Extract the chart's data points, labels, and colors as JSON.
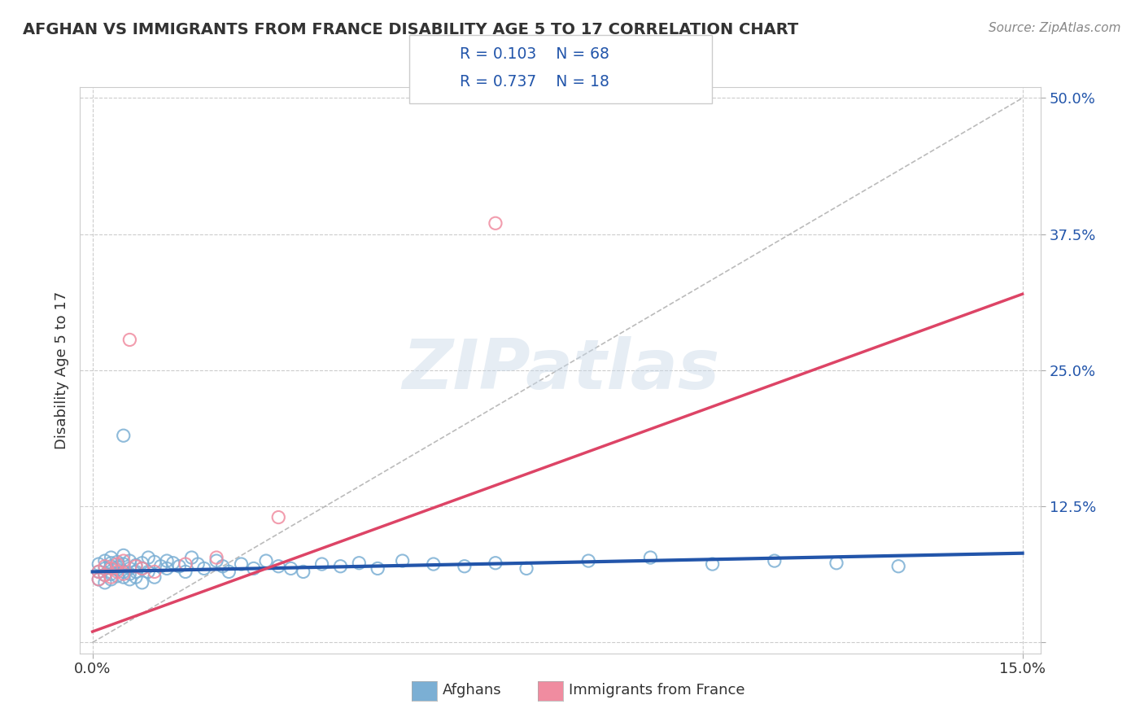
{
  "title": "AFGHAN VS IMMIGRANTS FROM FRANCE DISABILITY AGE 5 TO 17 CORRELATION CHART",
  "source": "Source: ZipAtlas.com",
  "ylabel": "Disability Age 5 to 17",
  "legend_r1": "R = 0.103",
  "legend_n1": "N = 68",
  "legend_r2": "R = 0.737",
  "legend_n2": "N = 18",
  "afghans_color": "#7bafd4",
  "france_color": "#f08ca0",
  "line_afghans_color": "#2255aa",
  "line_france_color": "#dd4466",
  "watermark": "ZIPatlas",
  "legend_text_color": "#2255aa",
  "background_color": "#ffffff",
  "xlim": [
    0.0,
    0.15
  ],
  "ylim": [
    0.0,
    0.5
  ],
  "y_ticks": [
    0.0,
    0.125,
    0.25,
    0.375,
    0.5
  ],
  "y_tick_labels": [
    "",
    "12.5%",
    "25.0%",
    "37.5%",
    "50.0%"
  ],
  "afghans_x": [
    0.001,
    0.001,
    0.001,
    0.002,
    0.002,
    0.002,
    0.002,
    0.003,
    0.003,
    0.003,
    0.003,
    0.003,
    0.004,
    0.004,
    0.004,
    0.004,
    0.005,
    0.005,
    0.005,
    0.005,
    0.005,
    0.006,
    0.006,
    0.006,
    0.006,
    0.007,
    0.007,
    0.007,
    0.008,
    0.008,
    0.008,
    0.009,
    0.009,
    0.01,
    0.01,
    0.011,
    0.012,
    0.012,
    0.013,
    0.014,
    0.015,
    0.016,
    0.017,
    0.018,
    0.02,
    0.021,
    0.022,
    0.024,
    0.026,
    0.028,
    0.03,
    0.032,
    0.034,
    0.037,
    0.04,
    0.043,
    0.046,
    0.05,
    0.055,
    0.06,
    0.065,
    0.07,
    0.08,
    0.09,
    0.1,
    0.11,
    0.12,
    0.13
  ],
  "afghans_y": [
    0.065,
    0.072,
    0.058,
    0.068,
    0.075,
    0.062,
    0.055,
    0.07,
    0.078,
    0.063,
    0.058,
    0.073,
    0.067,
    0.074,
    0.061,
    0.069,
    0.072,
    0.065,
    0.08,
    0.06,
    0.19,
    0.068,
    0.075,
    0.063,
    0.058,
    0.071,
    0.065,
    0.06,
    0.073,
    0.068,
    0.055,
    0.078,
    0.065,
    0.074,
    0.06,
    0.07,
    0.068,
    0.075,
    0.073,
    0.07,
    0.065,
    0.078,
    0.072,
    0.068,
    0.075,
    0.07,
    0.065,
    0.072,
    0.068,
    0.075,
    0.07,
    0.068,
    0.065,
    0.072,
    0.07,
    0.073,
    0.068,
    0.075,
    0.072,
    0.07,
    0.073,
    0.068,
    0.075,
    0.078,
    0.072,
    0.075,
    0.073,
    0.07
  ],
  "france_x": [
    0.001,
    0.001,
    0.002,
    0.002,
    0.003,
    0.003,
    0.004,
    0.004,
    0.005,
    0.005,
    0.006,
    0.007,
    0.008,
    0.01,
    0.015,
    0.02,
    0.03,
    0.065
  ],
  "france_y": [
    0.065,
    0.058,
    0.07,
    0.062,
    0.068,
    0.06,
    0.072,
    0.065,
    0.075,
    0.063,
    0.278,
    0.07,
    0.068,
    0.065,
    0.072,
    0.078,
    0.115,
    0.385
  ],
  "afghan_line_x0": 0.0,
  "afghan_line_x1": 0.15,
  "afghan_line_y0": 0.065,
  "afghan_line_y1": 0.082,
  "france_line_x0": 0.0,
  "france_line_x1": 0.15,
  "france_line_y0": 0.01,
  "france_line_y1": 0.32,
  "ref_line_x0": 0.0,
  "ref_line_x1": 0.15,
  "ref_line_y0": 0.0,
  "ref_line_y1": 0.5
}
